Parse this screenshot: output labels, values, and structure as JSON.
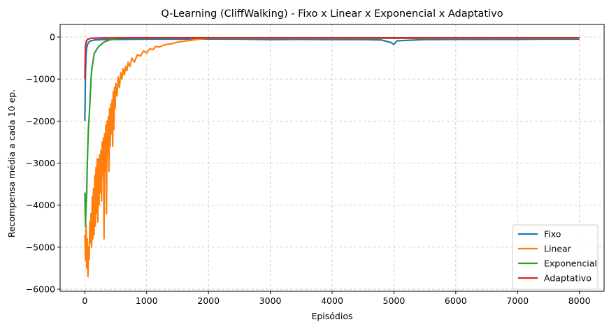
{
  "chart_data": {
    "type": "line",
    "title": "Q-Learning (CliffWalking) - Fixo x Linear x Exponencial x Adaptativo",
    "xlabel": "Episódios",
    "ylabel": "Recompensa média a cada 10 ep.",
    "xlim": [
      -400,
      8400
    ],
    "ylim": [
      -6050,
      300
    ],
    "xticks": [
      0,
      1000,
      2000,
      3000,
      4000,
      5000,
      6000,
      7000,
      8000
    ],
    "yticks": [
      -6000,
      -5000,
      -4000,
      -3000,
      -2000,
      -1000,
      0
    ],
    "xtick_labels": [
      "0",
      "1000",
      "2000",
      "3000",
      "4000",
      "5000",
      "6000",
      "7000",
      "8000"
    ],
    "ytick_labels": [
      "−6000",
      "−5000",
      "−4000",
      "−3000",
      "−2000",
      "−1000",
      "0"
    ],
    "grid": true,
    "legend_position": "bottom-right",
    "series": [
      {
        "name": "Fixo",
        "color": "#1f77b4",
        "points": [
          [
            0,
            -2000
          ],
          [
            10,
            -900
          ],
          [
            20,
            -400
          ],
          [
            30,
            -250
          ],
          [
            50,
            -150
          ],
          [
            80,
            -100
          ],
          [
            150,
            -70
          ],
          [
            300,
            -60
          ],
          [
            600,
            -55
          ],
          [
            1000,
            -50
          ],
          [
            1500,
            -50
          ],
          [
            2000,
            -48
          ],
          [
            2500,
            -50
          ],
          [
            3000,
            -60
          ],
          [
            3500,
            -55
          ],
          [
            4000,
            -60
          ],
          [
            4500,
            -60
          ],
          [
            4800,
            -70
          ],
          [
            4950,
            -130
          ],
          [
            5000,
            -175
          ],
          [
            5050,
            -90
          ],
          [
            5500,
            -60
          ],
          [
            6000,
            -55
          ],
          [
            6500,
            -55
          ],
          [
            7000,
            -55
          ],
          [
            7500,
            -50
          ],
          [
            8000,
            -50
          ]
        ]
      },
      {
        "name": "Linear",
        "color": "#ff7f0e",
        "points": [
          [
            0,
            -4700
          ],
          [
            10,
            -5300
          ],
          [
            20,
            -4500
          ],
          [
            30,
            -5500
          ],
          [
            40,
            -4800
          ],
          [
            50,
            -5700
          ],
          [
            60,
            -5000
          ],
          [
            70,
            -5300
          ],
          [
            80,
            -4400
          ],
          [
            90,
            -4900
          ],
          [
            100,
            -4200
          ],
          [
            110,
            -5000
          ],
          [
            120,
            -3800
          ],
          [
            130,
            -4800
          ],
          [
            140,
            -3600
          ],
          [
            150,
            -4700
          ],
          [
            160,
            -3300
          ],
          [
            170,
            -4500
          ],
          [
            180,
            -3100
          ],
          [
            190,
            -4200
          ],
          [
            200,
            -2900
          ],
          [
            210,
            -4400
          ],
          [
            220,
            -2900
          ],
          [
            230,
            -4000
          ],
          [
            240,
            -2800
          ],
          [
            250,
            -3700
          ],
          [
            260,
            -2700
          ],
          [
            270,
            -3900
          ],
          [
            280,
            -2500
          ],
          [
            290,
            -3300
          ],
          [
            300,
            -2400
          ],
          [
            310,
            -4800
          ],
          [
            320,
            -2300
          ],
          [
            330,
            -3200
          ],
          [
            340,
            -2100
          ],
          [
            350,
            -4200
          ],
          [
            360,
            -2000
          ],
          [
            370,
            -2800
          ],
          [
            380,
            -1900
          ],
          [
            390,
            -3200
          ],
          [
            400,
            -1700
          ],
          [
            410,
            -2600
          ],
          [
            420,
            -1600
          ],
          [
            430,
            -2300
          ],
          [
            440,
            -1500
          ],
          [
            450,
            -2600
          ],
          [
            460,
            -1300
          ],
          [
            470,
            -2200
          ],
          [
            480,
            -1200
          ],
          [
            490,
            -1700
          ],
          [
            500,
            -1100
          ],
          [
            520,
            -1400
          ],
          [
            540,
            -950
          ],
          [
            560,
            -1200
          ],
          [
            580,
            -850
          ],
          [
            600,
            -1000
          ],
          [
            620,
            -750
          ],
          [
            640,
            -900
          ],
          [
            660,
            -700
          ],
          [
            680,
            -800
          ],
          [
            700,
            -600
          ],
          [
            730,
            -700
          ],
          [
            760,
            -500
          ],
          [
            800,
            -600
          ],
          [
            850,
            -420
          ],
          [
            900,
            -450
          ],
          [
            950,
            -330
          ],
          [
            1000,
            -380
          ],
          [
            1050,
            -280
          ],
          [
            1100,
            -300
          ],
          [
            1150,
            -220
          ],
          [
            1200,
            -240
          ],
          [
            1300,
            -180
          ],
          [
            1400,
            -160
          ],
          [
            1500,
            -120
          ],
          [
            1600,
            -100
          ],
          [
            1700,
            -80
          ],
          [
            1800,
            -60
          ],
          [
            1900,
            -45
          ],
          [
            2000,
            -30
          ],
          [
            3000,
            -30
          ],
          [
            4000,
            -30
          ],
          [
            5000,
            -30
          ],
          [
            6000,
            -30
          ],
          [
            7000,
            -30
          ],
          [
            8000,
            -30
          ]
        ]
      },
      {
        "name": "Exponencial",
        "color": "#2ca02c",
        "points": [
          [
            0,
            -3700
          ],
          [
            10,
            -4500
          ],
          [
            20,
            -4000
          ],
          [
            30,
            -3700
          ],
          [
            40,
            -3000
          ],
          [
            50,
            -2500
          ],
          [
            60,
            -2100
          ],
          [
            70,
            -1900
          ],
          [
            80,
            -1600
          ],
          [
            90,
            -1300
          ],
          [
            100,
            -1000
          ],
          [
            110,
            -800
          ],
          [
            120,
            -700
          ],
          [
            130,
            -600
          ],
          [
            140,
            -500
          ],
          [
            150,
            -400
          ],
          [
            170,
            -350
          ],
          [
            190,
            -300
          ],
          [
            210,
            -250
          ],
          [
            240,
            -200
          ],
          [
            270,
            -170
          ],
          [
            300,
            -130
          ],
          [
            340,
            -100
          ],
          [
            380,
            -80
          ],
          [
            420,
            -60
          ],
          [
            460,
            -50
          ],
          [
            500,
            -40
          ],
          [
            600,
            -30
          ],
          [
            1000,
            -25
          ],
          [
            2000,
            -25
          ],
          [
            3000,
            -25
          ],
          [
            4000,
            -25
          ],
          [
            5000,
            -25
          ],
          [
            6000,
            -25
          ],
          [
            7000,
            -25
          ],
          [
            8000,
            -25
          ]
        ]
      },
      {
        "name": "Adaptativo",
        "color": "#d62728",
        "points": [
          [
            0,
            -1000
          ],
          [
            5,
            -500
          ],
          [
            10,
            -250
          ],
          [
            20,
            -120
          ],
          [
            30,
            -80
          ],
          [
            50,
            -50
          ],
          [
            100,
            -30
          ],
          [
            300,
            -20
          ],
          [
            1000,
            -18
          ],
          [
            2000,
            -18
          ],
          [
            3000,
            -18
          ],
          [
            4000,
            -18
          ],
          [
            5000,
            -18
          ],
          [
            6000,
            -18
          ],
          [
            7000,
            -18
          ],
          [
            8000,
            -18
          ]
        ]
      }
    ]
  }
}
